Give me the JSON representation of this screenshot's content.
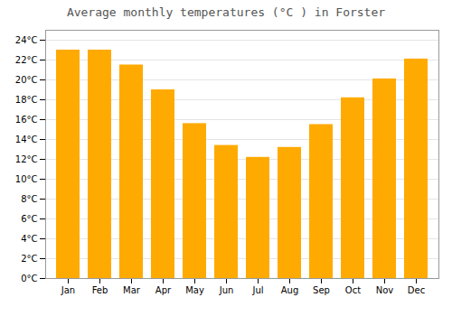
{
  "chart_data": {
    "type": "bar",
    "title": "Average monthly temperatures (°C ) in Forster",
    "categories": [
      "Jan",
      "Feb",
      "Mar",
      "Apr",
      "May",
      "Jun",
      "Jul",
      "Aug",
      "Sep",
      "Oct",
      "Nov",
      "Dec"
    ],
    "values": [
      23.0,
      23.0,
      21.5,
      19.0,
      15.6,
      13.4,
      12.2,
      13.2,
      15.5,
      18.2,
      20.1,
      22.1
    ],
    "color": "#FFAA00",
    "ylim": [
      0,
      25
    ],
    "yticks": [
      {
        "value": 0,
        "label": "0°C"
      },
      {
        "value": 2,
        "label": "2°C"
      },
      {
        "value": 4,
        "label": "4°C"
      },
      {
        "value": 6,
        "label": "6°C"
      },
      {
        "value": 8,
        "label": "8°C"
      },
      {
        "value": 10,
        "label": "10°C"
      },
      {
        "value": 12,
        "label": "12°C"
      },
      {
        "value": 14,
        "label": "14°C"
      },
      {
        "value": 16,
        "label": "16°C"
      },
      {
        "value": 18,
        "label": "18°C"
      },
      {
        "value": 20,
        "label": "20°C"
      },
      {
        "value": 22,
        "label": "22°C"
      },
      {
        "value": 24,
        "label": "24°C"
      }
    ],
    "grid": true
  }
}
